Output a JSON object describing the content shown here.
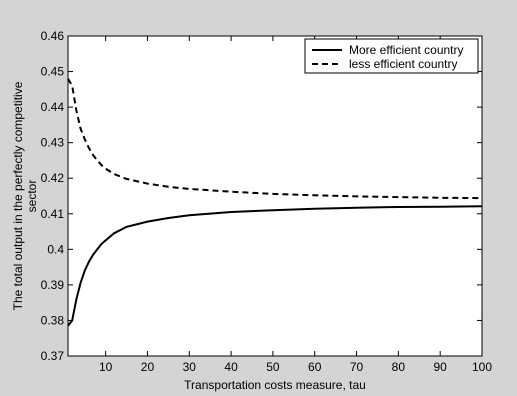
{
  "chart_data": {
    "type": "line",
    "title": "",
    "xlabel": "Transportation costs measure, tau",
    "ylabel_lines": [
      "The total output in the perfectly competitive",
      "sector"
    ],
    "xlim": [
      1,
      100
    ],
    "ylim": [
      0.37,
      0.46
    ],
    "xticks": [
      10,
      20,
      30,
      40,
      50,
      60,
      70,
      80,
      90,
      100
    ],
    "yticks": [
      0.37,
      0.38,
      0.39,
      0.4,
      0.41,
      0.42,
      0.43,
      0.44,
      0.45,
      0.46
    ],
    "ytick_labels": [
      "0.37",
      "0.38",
      "0.39",
      "0.4",
      "0.41",
      "0.42",
      "0.43",
      "0.44",
      "0.45",
      "0.46"
    ],
    "grid": false,
    "legend_position": "top-right",
    "series": [
      {
        "name": "More efficient country",
        "style": "solid",
        "color": "#000000",
        "x": [
          1,
          2,
          3,
          4,
          5,
          6,
          7,
          8,
          9,
          10,
          12,
          15,
          20,
          25,
          30,
          40,
          50,
          60,
          70,
          80,
          90,
          100
        ],
        "y": [
          0.3785,
          0.38,
          0.386,
          0.3905,
          0.394,
          0.3965,
          0.3985,
          0.4,
          0.4015,
          0.4025,
          0.4045,
          0.4063,
          0.4078,
          0.4088,
          0.4096,
          0.4105,
          0.411,
          0.4114,
          0.4117,
          0.4119,
          0.412,
          0.4121
        ]
      },
      {
        "name": "less efficient country",
        "style": "dashed",
        "color": "#000000",
        "x": [
          1,
          2,
          3,
          4,
          5,
          6,
          7,
          8,
          9,
          10,
          12,
          15,
          20,
          25,
          30,
          40,
          50,
          60,
          70,
          80,
          90,
          100
        ],
        "y": [
          0.448,
          0.446,
          0.439,
          0.434,
          0.431,
          0.4285,
          0.4265,
          0.425,
          0.4237,
          0.4227,
          0.4212,
          0.4198,
          0.4185,
          0.4176,
          0.417,
          0.4162,
          0.4156,
          0.4152,
          0.4149,
          0.4147,
          0.4145,
          0.4144
        ]
      }
    ]
  }
}
